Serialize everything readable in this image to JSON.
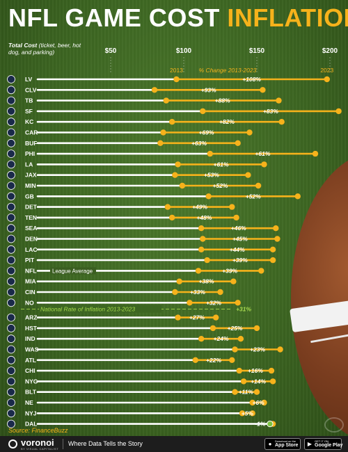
{
  "title": {
    "part1": "NFL GAME COST",
    "part2": "INFLATION"
  },
  "header": {
    "cost_label": "Total Cost",
    "cost_sub": "(ticket, beer, hot dog, and parking)",
    "year_start": "2013",
    "year_end": "2023",
    "pct_label": "% Change 2013-2023"
  },
  "source": "Source: FinanceBuzz",
  "footer": {
    "brand": "voronoi",
    "brand_sub": "BY VISUAL CAPITALIST",
    "tagline": "Where Data Tells the Story",
    "appstore_small": "Download on the",
    "appstore": "App Store",
    "gplay_small": "GET IT ON",
    "gplay": "Google Play"
  },
  "colors": {
    "start_dot": "#f6b21b",
    "end_dot": "#f6b21b",
    "bar": "#ffffff",
    "range_line": "#f6b21b",
    "national_line": "#a6d94e",
    "negative": "#7cc242"
  },
  "chart_data": {
    "type": "dumbbell",
    "title": "NFL GAME COST INFLATION",
    "xlabel": "Total Cost (ticket, beer, hot dog, and parking)",
    "x_ticks": [
      "$50",
      "$100",
      "$150",
      "$200"
    ],
    "xlim": [
      0,
      205
    ],
    "series_labels": [
      "2013",
      "2023"
    ],
    "change_label": "% Change 2013-2023",
    "national_inflation": {
      "label": "National Rate of Inflation 2013-2023",
      "value": "+31%"
    },
    "teams": [
      {
        "team": "LV",
        "v2013": 95,
        "v2023": 198,
        "change": "+108%"
      },
      {
        "team": "CLV",
        "v2013": 80,
        "v2023": 154,
        "change": "+93%"
      },
      {
        "team": "TB",
        "v2013": 88,
        "v2023": 165,
        "change": "+88%"
      },
      {
        "team": "SF",
        "v2013": 113,
        "v2023": 206,
        "change": "+83%"
      },
      {
        "team": "KC",
        "v2013": 92,
        "v2023": 167,
        "change": "+82%"
      },
      {
        "team": "CAR",
        "v2013": 86,
        "v2023": 145,
        "change": "+69%"
      },
      {
        "team": "BUF",
        "v2013": 84,
        "v2023": 137,
        "change": "+63%"
      },
      {
        "team": "PHI",
        "v2013": 118,
        "v2023": 190,
        "change": "+61%"
      },
      {
        "team": "LA",
        "v2013": 96,
        "v2023": 155,
        "change": "+61%"
      },
      {
        "team": "JAX",
        "v2013": 94,
        "v2023": 144,
        "change": "+53%"
      },
      {
        "team": "MIN",
        "v2013": 99,
        "v2023": 151,
        "change": "+52%"
      },
      {
        "team": "GB",
        "v2013": 117,
        "v2023": 178,
        "change": "+52%"
      },
      {
        "team": "DET",
        "v2013": 89,
        "v2023": 133,
        "change": "+49%"
      },
      {
        "team": "TEN",
        "v2013": 92,
        "v2023": 136,
        "change": "+48%"
      },
      {
        "team": "SEA",
        "v2013": 112,
        "v2023": 163,
        "change": "+46%"
      },
      {
        "team": "DEN",
        "v2013": 113,
        "v2023": 164,
        "change": "+45%"
      },
      {
        "team": "LAC",
        "v2013": 112,
        "v2023": 161,
        "change": "+44%"
      },
      {
        "team": "PIT",
        "v2013": 116,
        "v2023": 161,
        "change": "+39%"
      },
      {
        "team": "NFL",
        "v2013": 110,
        "v2023": 153,
        "change": "+39%",
        "note": "League Average"
      },
      {
        "team": "MIA",
        "v2013": 97,
        "v2023": 134,
        "change": "+38%"
      },
      {
        "team": "CIN",
        "v2013": 94,
        "v2023": 125,
        "change": "+33%"
      },
      {
        "team": "NO",
        "v2013": 104,
        "v2023": 137,
        "change": "+32%"
      },
      {
        "team": "ARZ",
        "v2013": 96,
        "v2023": 122,
        "change": "+27%"
      },
      {
        "team": "HST",
        "v2013": 120,
        "v2023": 150,
        "change": "+25%"
      },
      {
        "team": "IND",
        "v2013": 112,
        "v2023": 139,
        "change": "+24%"
      },
      {
        "team": "WAS",
        "v2013": 135,
        "v2023": 166,
        "change": "+23%"
      },
      {
        "team": "ATL",
        "v2013": 108,
        "v2023": 133,
        "change": "+22%"
      },
      {
        "team": "CHI",
        "v2013": 138,
        "v2023": 160,
        "change": "+16%"
      },
      {
        "team": "NYG",
        "v2013": 141,
        "v2023": 161,
        "change": "+14%"
      },
      {
        "team": "BLT",
        "v2013": 135,
        "v2023": 150,
        "change": "+11%"
      },
      {
        "team": "NE",
        "v2013": 147,
        "v2023": 155,
        "change": "+6%"
      },
      {
        "team": "NYJ",
        "v2013": 140,
        "v2023": 147,
        "change": "+5%"
      },
      {
        "team": "DAL",
        "v2013": 161,
        "v2023": 159,
        "change": "-1%"
      }
    ]
  }
}
